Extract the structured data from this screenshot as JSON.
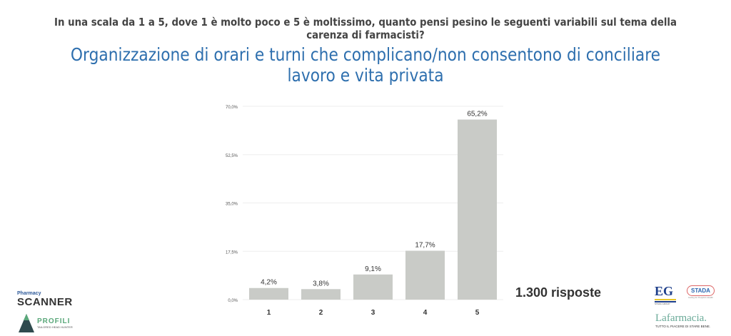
{
  "header": {
    "question": "In una scala da 1 a 5, dove 1 è molto poco e 5 è moltissimo, quanto pensi pesino le seguenti variabili sul tema della carenza di farmacisti?",
    "title": "Organizzazione di orari e turni che complicano/non consentono di conciliare lavoro e vita privata"
  },
  "responses": "1.300 risposte",
  "logos": {
    "left": [
      "Pharmacy",
      "SCANNER",
      "PROFILI",
      "TAILORED HEAD HUNTER"
    ],
    "right": [
      "EG",
      "STADA GROUP",
      "STADA",
      "Caring for People's Health",
      "Lafarmacia.",
      "TUTTO IL PIACERE DI STARE BENE."
    ]
  },
  "colors": {
    "bar": "#c9cbc7",
    "title": "#2e6fae"
  },
  "chart_data": {
    "type": "bar",
    "categories": [
      "1",
      "2",
      "3",
      "4",
      "5"
    ],
    "values": [
      4.2,
      3.8,
      9.1,
      17.7,
      65.2
    ],
    "labels": [
      "4,2%",
      "3,8%",
      "9,1%",
      "17,7%",
      "65,2%"
    ],
    "yticks": [
      0,
      17.5,
      35,
      52.5,
      70
    ],
    "ytick_labels": [
      "0,0%",
      "17,5%",
      "35,0%",
      "52,5%",
      "70,0%"
    ],
    "ylim": [
      0,
      70
    ],
    "grid": true
  }
}
